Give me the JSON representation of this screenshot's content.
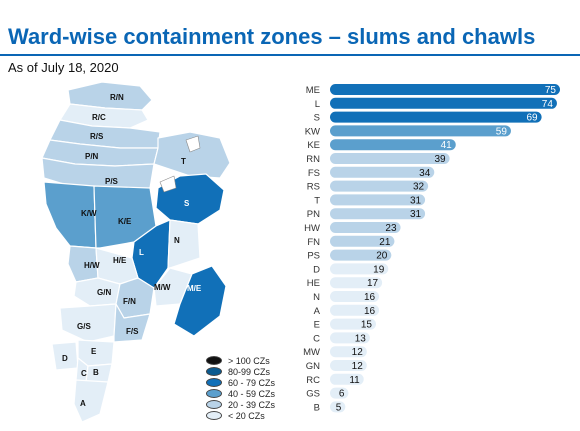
{
  "title": "Ward-wise containment zones – slums and chawls",
  "subtitle": "As of July 18, 2020",
  "colors": {
    "gt100": "#111111",
    "c80_99": "#0b5a8f",
    "c60_79": "#1170b8",
    "c40_59": "#5b9fcd",
    "c20_39": "#b9d3e8",
    "lt20": "#e3eef7"
  },
  "legend": [
    {
      "label": "> 100 CZs",
      "color_key": "gt100"
    },
    {
      "label": "80-99 CZs",
      "color_key": "c80_99"
    },
    {
      "label": "60 - 79 CZs",
      "color_key": "c60_79"
    },
    {
      "label": "40 - 59 CZs",
      "color_key": "c40_59"
    },
    {
      "label": "20 - 39 CZs",
      "color_key": "c20_39"
    },
    {
      "label": "< 20 CZs",
      "color_key": "lt20"
    }
  ],
  "map": {
    "wards": [
      {
        "id": "R/N",
        "color_key": "c20_39"
      },
      {
        "id": "R/C",
        "color_key": "lt20"
      },
      {
        "id": "R/S",
        "color_key": "c20_39"
      },
      {
        "id": "P/N",
        "color_key": "c20_39"
      },
      {
        "id": "P/S",
        "color_key": "c20_39"
      },
      {
        "id": "T",
        "color_key": "c20_39"
      },
      {
        "id": "K/W",
        "color_key": "c40_59"
      },
      {
        "id": "K/E",
        "color_key": "c40_59"
      },
      {
        "id": "S",
        "color_key": "c60_79"
      },
      {
        "id": "L",
        "color_key": "c60_79"
      },
      {
        "id": "N",
        "color_key": "lt20"
      },
      {
        "id": "H/W",
        "color_key": "c20_39"
      },
      {
        "id": "H/E",
        "color_key": "lt20"
      },
      {
        "id": "G/N",
        "color_key": "lt20"
      },
      {
        "id": "F/N",
        "color_key": "c20_39"
      },
      {
        "id": "M/W",
        "color_key": "lt20"
      },
      {
        "id": "M/E",
        "color_key": "c60_79"
      },
      {
        "id": "G/S",
        "color_key": "lt20"
      },
      {
        "id": "F/S",
        "color_key": "c20_39"
      },
      {
        "id": "D",
        "color_key": "lt20"
      },
      {
        "id": "E",
        "color_key": "lt20"
      },
      {
        "id": "C",
        "color_key": "lt20"
      },
      {
        "id": "B",
        "color_key": "lt20"
      },
      {
        "id": "A",
        "color_key": "lt20"
      }
    ]
  },
  "chart_data": {
    "type": "bar",
    "orientation": "horizontal",
    "categories": [
      "ME",
      "L",
      "S",
      "KW",
      "KE",
      "RN",
      "FS",
      "RS",
      "T",
      "PN",
      "HW",
      "FN",
      "PS",
      "D",
      "HE",
      "N",
      "A",
      "E",
      "C",
      "MW",
      "GN",
      "RC",
      "GS",
      "B"
    ],
    "values": [
      75,
      74,
      69,
      59,
      41,
      39,
      34,
      32,
      31,
      31,
      23,
      21,
      20,
      19,
      17,
      16,
      16,
      15,
      13,
      12,
      12,
      11,
      6,
      5
    ],
    "xlim": [
      0,
      75
    ],
    "grid": false,
    "legend_position": "bottom-left"
  }
}
